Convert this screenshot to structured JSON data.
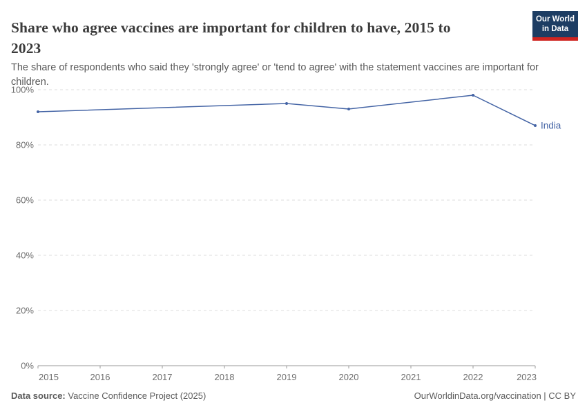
{
  "header": {
    "title": "Share who agree vaccines are important for children to have, 2015 to 2023",
    "subtitle": "The share of respondents who said they 'strongly agree' or 'tend to agree' with the statement vaccines are important for children.",
    "logo": {
      "line1": "Our World",
      "line2": "in Data",
      "bg_color": "#1d3d63",
      "accent_color": "#cf2420"
    }
  },
  "chart_data": {
    "type": "line",
    "title": "Share who agree vaccines are important for children to have, 2015 to 2023",
    "xlabel": "",
    "ylabel": "",
    "xlim": [
      2015,
      2023
    ],
    "ylim": [
      0,
      100
    ],
    "x_ticks": [
      2015,
      2016,
      2017,
      2018,
      2019,
      2020,
      2021,
      2022,
      2023
    ],
    "y_ticks": [
      0,
      20,
      40,
      60,
      80,
      100
    ],
    "y_tick_suffix": "%",
    "grid": "horizontal-dashed",
    "legend_position": "end-of-line-label",
    "series": [
      {
        "name": "India",
        "color": "#4464a5",
        "data": [
          {
            "x": 2015,
            "y": 92
          },
          {
            "x": 2019,
            "y": 95
          },
          {
            "x": 2020,
            "y": 93
          },
          {
            "x": 2022,
            "y": 98
          },
          {
            "x": 2023,
            "y": 87
          }
        ]
      }
    ],
    "colors": {
      "gridline": "#dcdcdc",
      "axis_line": "#9a9a9a",
      "tick_label": "#6e6e6e"
    }
  },
  "footer": {
    "source_label": "Data source:",
    "source_value": " Vaccine Confidence Project (2025)",
    "credit": "OurWorldinData.org/vaccination | CC BY"
  }
}
